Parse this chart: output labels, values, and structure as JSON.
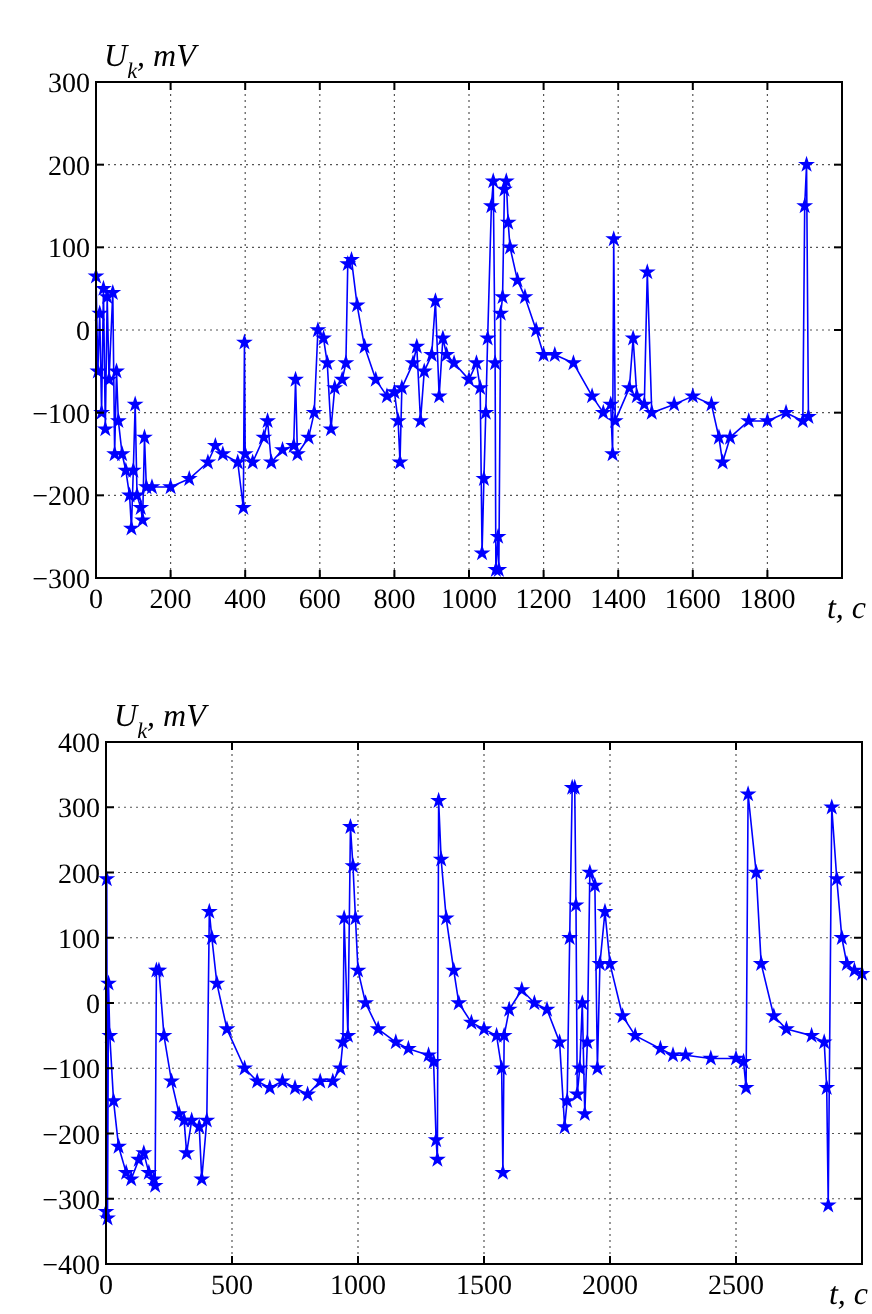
{
  "chart_data": [
    {
      "type": "line",
      "xlabel": "t, c",
      "ylabel": "U$_{k}$, mV",
      "xlim": [
        0,
        2000
      ],
      "ylim": [
        -300,
        300
      ],
      "xticks": [
        0,
        200,
        400,
        600,
        800,
        1000,
        1200,
        1400,
        1600,
        1800
      ],
      "yticks": [
        -300,
        -200,
        -100,
        0,
        100,
        200,
        300
      ],
      "grid": true,
      "marker": "star",
      "line_style": "solid",
      "series": [
        {
          "color": "#0000ff",
          "x": [
            0,
            5,
            10,
            15,
            20,
            25,
            30,
            35,
            45,
            50,
            55,
            60,
            70,
            80,
            90,
            95,
            100,
            105,
            110,
            120,
            125,
            130,
            135,
            150,
            200,
            250,
            300,
            320,
            340,
            380,
            395,
            398,
            400,
            420,
            450,
            460,
            470,
            500,
            530,
            535,
            540,
            570,
            585,
            595,
            610,
            620,
            630,
            640,
            660,
            670,
            675,
            685,
            700,
            720,
            750,
            780,
            800,
            810,
            815,
            820,
            850,
            860,
            870,
            880,
            900,
            910,
            920,
            930,
            940,
            960,
            1000,
            1020,
            1030,
            1035,
            1040,
            1045,
            1050,
            1060,
            1065,
            1070,
            1072,
            1078,
            1080,
            1085,
            1090,
            1095,
            1100,
            1105,
            1110,
            1130,
            1150,
            1180,
            1200,
            1230,
            1280,
            1330,
            1360,
            1380,
            1385,
            1388,
            1392,
            1430,
            1440,
            1450,
            1470,
            1478,
            1490,
            1550,
            1600,
            1650,
            1670,
            1680,
            1700,
            1750,
            1800,
            1850,
            1895,
            1900,
            1905,
            1910
          ],
          "values": [
            65,
            -50,
            20,
            -100,
            50,
            -120,
            40,
            -60,
            45,
            -150,
            -50,
            -110,
            -150,
            -170,
            -200,
            -240,
            -170,
            -90,
            -200,
            -215,
            -230,
            -130,
            -190,
            -190,
            -190,
            -180,
            -160,
            -140,
            -150,
            -160,
            -215,
            -15,
            -150,
            -160,
            -130,
            -110,
            -160,
            -145,
            -140,
            -60,
            -150,
            -130,
            -100,
            0,
            -10,
            -40,
            -120,
            -70,
            -60,
            -40,
            80,
            85,
            30,
            -20,
            -60,
            -80,
            -75,
            -110,
            -160,
            -70,
            -40,
            -20,
            -110,
            -50,
            -30,
            35,
            -80,
            -10,
            -30,
            -40,
            -60,
            -40,
            -70,
            -270,
            -180,
            -100,
            -10,
            150,
            180,
            -40,
            -290,
            -250,
            -290,
            20,
            40,
            170,
            180,
            130,
            100,
            60,
            40,
            0,
            -30,
            -30,
            -40,
            -80,
            -100,
            -90,
            -150,
            110,
            -110,
            -70,
            -10,
            -80,
            -90,
            70,
            -100,
            -90,
            -80,
            -90,
            -130,
            -160,
            -130,
            -110,
            -110,
            -100,
            -110,
            150,
            200,
            -105
          ]
        }
      ]
    },
    {
      "type": "line",
      "xlabel": "t, c",
      "ylabel": "U$_{k}$, mV",
      "xlim": [
        0,
        3000
      ],
      "ylim": [
        -400,
        400
      ],
      "xticks": [
        0,
        500,
        1000,
        1500,
        2000,
        2500
      ],
      "yticks": [
        -400,
        -300,
        -200,
        -100,
        0,
        100,
        200,
        300,
        400
      ],
      "grid": true,
      "marker": "star",
      "line_style": "solid",
      "series": [
        {
          "color": "#0000ff",
          "x": [
            0,
            3,
            6,
            10,
            15,
            30,
            50,
            80,
            100,
            130,
            150,
            170,
            190,
            195,
            200,
            210,
            230,
            260,
            290,
            310,
            320,
            340,
            370,
            380,
            400,
            410,
            420,
            440,
            480,
            550,
            600,
            650,
            700,
            750,
            800,
            850,
            900,
            930,
            940,
            945,
            960,
            970,
            980,
            990,
            1000,
            1030,
            1080,
            1150,
            1200,
            1280,
            1300,
            1310,
            1315,
            1320,
            1330,
            1350,
            1380,
            1400,
            1450,
            1500,
            1550,
            1570,
            1575,
            1580,
            1600,
            1650,
            1700,
            1750,
            1800,
            1820,
            1830,
            1840,
            1850,
            1860,
            1865,
            1870,
            1880,
            1890,
            1900,
            1910,
            1920,
            1940,
            1950,
            1960,
            1980,
            2000,
            2050,
            2100,
            2200,
            2250,
            2300,
            2400,
            2500,
            2530,
            2540,
            2548,
            2580,
            2600,
            2650,
            2700,
            2800,
            2850,
            2860,
            2866,
            2880,
            2900,
            2920,
            2940,
            2970,
            3000
          ],
          "values": [
            -320,
            190,
            -330,
            30,
            -50,
            -150,
            -220,
            -260,
            -270,
            -240,
            -230,
            -260,
            -270,
            -280,
            50,
            50,
            -50,
            -120,
            -170,
            -180,
            -230,
            -180,
            -190,
            -270,
            -180,
            140,
            100,
            30,
            -40,
            -100,
            -120,
            -130,
            -120,
            -130,
            -140,
            -120,
            -120,
            -100,
            -60,
            130,
            -50,
            270,
            210,
            130,
            50,
            0,
            -40,
            -60,
            -70,
            -80,
            -90,
            -210,
            -240,
            310,
            220,
            130,
            50,
            0,
            -30,
            -40,
            -50,
            -100,
            -260,
            -50,
            -10,
            20,
            0,
            -10,
            -60,
            -190,
            -150,
            100,
            330,
            330,
            150,
            -140,
            -100,
            0,
            -170,
            -60,
            200,
            180,
            -100,
            60,
            140,
            60,
            -20,
            -50,
            -70,
            -80,
            -80,
            -85,
            -85,
            -90,
            -130,
            320,
            200,
            60,
            -20,
            -40,
            -50,
            -60,
            -130,
            -310,
            300,
            190,
            100,
            60,
            50,
            45
          ]
        }
      ]
    }
  ]
}
